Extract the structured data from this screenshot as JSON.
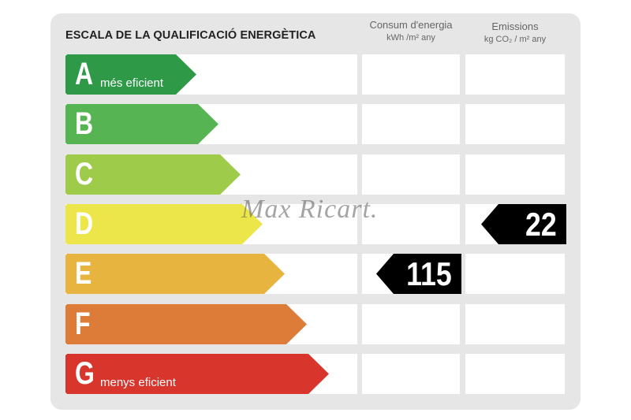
{
  "title": "ESCALA DE LA QUALIFICACIÓ ENERGÈTICA",
  "columns": {
    "consumption": {
      "label": "Consum d'energia",
      "unit": "kWh /m² any"
    },
    "emissions": {
      "label": "Emissions",
      "unit": "kg CO₂ / m² any"
    }
  },
  "ratings": [
    {
      "letter": "A",
      "caption": "més eficient",
      "color": "#2e9a48"
    },
    {
      "letter": "B",
      "caption": "",
      "color": "#56b552"
    },
    {
      "letter": "C",
      "caption": "",
      "color": "#9fcb4a"
    },
    {
      "letter": "D",
      "caption": "",
      "color": "#ece64a"
    },
    {
      "letter": "E",
      "caption": "",
      "color": "#e8b440"
    },
    {
      "letter": "F",
      "caption": "",
      "color": "#dd7b38"
    },
    {
      "letter": "G",
      "caption": "menys eficient",
      "color": "#d8352d"
    }
  ],
  "consumption_value": "115",
  "consumption_rating": "E",
  "emissions_value": "22",
  "emissions_rating": "D",
  "watermark": "Max Ricart."
}
